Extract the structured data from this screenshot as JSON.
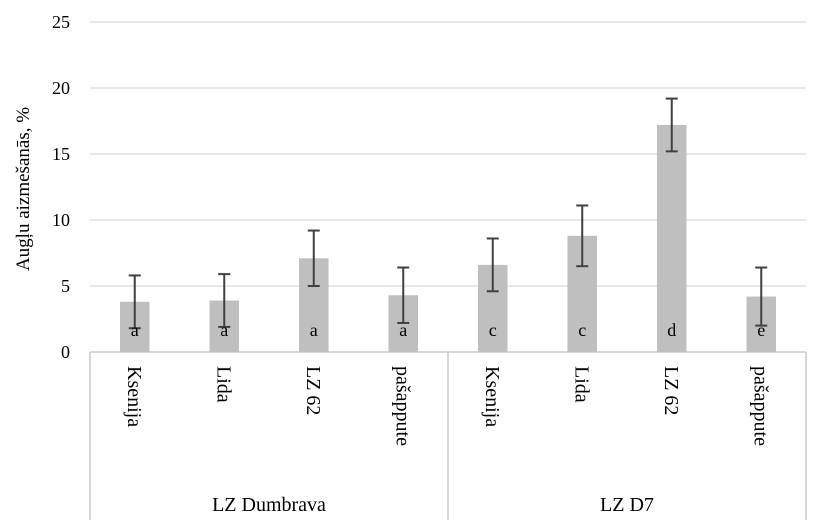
{
  "chart_data": {
    "type": "bar",
    "ylabel": "Augļu aizmešanās, %",
    "ylim": [
      0,
      25
    ],
    "yticks": [
      0,
      5,
      10,
      15,
      20,
      25
    ],
    "grid": true,
    "groups": [
      {
        "name": "LZ Dumbrava",
        "bars": [
          {
            "category": "Ksenija",
            "value": 3.8,
            "error": 2.0,
            "letter": "a"
          },
          {
            "category": "Lida",
            "value": 3.9,
            "error": 2.0,
            "letter": "a"
          },
          {
            "category": "LZ 62",
            "value": 7.1,
            "error": 2.1,
            "letter": "a"
          },
          {
            "category": "pašappute",
            "value": 4.3,
            "error": 2.1,
            "letter": "a"
          }
        ]
      },
      {
        "name": "LZ D7",
        "bars": [
          {
            "category": "Ksenija",
            "value": 6.6,
            "error": 2.0,
            "letter": "c"
          },
          {
            "category": "Lida",
            "value": 8.8,
            "error": 2.3,
            "letter": "c"
          },
          {
            "category": "LZ 62",
            "value": 17.2,
            "error": 2.0,
            "letter": "d"
          },
          {
            "category": "pašappute",
            "value": 4.2,
            "error": 2.2,
            "letter": "e"
          }
        ]
      }
    ],
    "colors": {
      "bar": "#bfbfbf",
      "error_bar": "#404040",
      "grid": "#d9d9d9",
      "axis": "#bfbfbf"
    }
  }
}
